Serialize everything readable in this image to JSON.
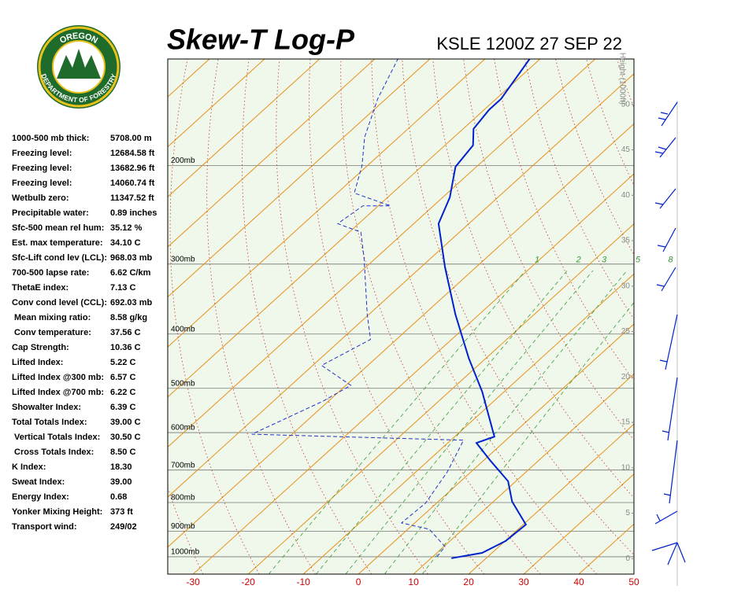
{
  "logo": {
    "top": "OREGON",
    "bottom": "DEPARTMENT OF FORESTRY"
  },
  "indices": [
    [
      "1000-500 mb thick:",
      "5708.00 m"
    ],
    [
      "Freezing level:",
      "12684.58 ft"
    ],
    [
      "Freezing level:",
      "13682.96 ft"
    ],
    [
      "Freezing level:",
      "14060.74 ft"
    ],
    [
      "Wetbulb zero:",
      "11347.52 ft"
    ],
    [
      "Precipitable water:",
      "0.89 inches"
    ],
    [
      "Sfc-500 mean rel hum:",
      "35.12 %"
    ],
    [
      "Est. max temperature:",
      "34.10 C"
    ],
    [
      "Sfc-Lift cond lev (LCL):",
      "968.03 mb"
    ],
    [
      "700-500 lapse rate:",
      "6.62 C/km"
    ],
    [
      "ThetaE index:",
      "7.13 C"
    ],
    [
      "Conv cond level (CCL):",
      "692.03 mb"
    ],
    [
      " Mean mixing ratio:",
      "8.58 g/kg"
    ],
    [
      " Conv temperature:",
      "37.56 C"
    ],
    [
      "Cap Strength:",
      "10.36 C"
    ],
    [
      "Lifted Index:",
      "5.22 C"
    ],
    [
      "Lifted Index @300 mb:",
      "6.57 C"
    ],
    [
      "Lifted Index @700 mb:",
      "6.22 C"
    ],
    [
      "Showalter Index:",
      "6.39 C"
    ],
    [
      "Total Totals Index:",
      "39.00 C"
    ],
    [
      " Vertical Totals Index:",
      "30.50 C"
    ],
    [
      " Cross Totals Index:",
      "8.50 C"
    ],
    [
      "K Index:",
      "18.30"
    ],
    [
      "Sweat Index:",
      "39.00"
    ],
    [
      "Energy Index:",
      "0.68"
    ],
    [
      "Yonker Mixing Height:",
      "373 ft"
    ],
    [
      "Transport wind:",
      "249/02"
    ]
  ],
  "chart_data": {
    "type": "skewt",
    "title": "Skew-T Log-P",
    "subtitle": "KSLE 1200Z 27 SEP 22",
    "xlim": [
      -34.6,
      50
    ],
    "xticks": [
      -30,
      -20,
      -10,
      0,
      10,
      20,
      30,
      40,
      50
    ],
    "ylim": [
      1074,
      129
    ],
    "log_y": true,
    "yticks": [
      {
        "value": 1000,
        "label": "1000mb"
      },
      {
        "value": 900,
        "label": "900mb"
      },
      {
        "value": 800,
        "label": "800mb"
      },
      {
        "value": 700,
        "label": "700mb"
      },
      {
        "value": 600,
        "label": "600mb"
      },
      {
        "value": 500,
        "label": "500mb"
      },
      {
        "value": 400,
        "label": "400mb"
      },
      {
        "value": 300,
        "label": "300mb"
      },
      {
        "value": 200,
        "label": "200mb"
      }
    ],
    "y2_label": "Height (1000ft)",
    "y2lim": [
      -1.7,
      55
    ],
    "y2ticks": [
      0,
      5,
      10,
      15,
      20,
      25,
      30,
      35,
      40,
      45,
      50
    ],
    "mixing_ratio_labels": [
      "1",
      "2",
      "3",
      "5",
      "8"
    ],
    "series": [
      {
        "name": "Temperature",
        "color": "#0022cc",
        "dashed": false,
        "pressure": [
          1006,
          984,
          937,
          876,
          797,
          733,
          672,
          626,
          610,
          507,
          442,
          369,
          304,
          254,
          228,
          201,
          184,
          172,
          159,
          152,
          129
        ],
        "values": [
          13.7,
          18.2,
          20.1,
          20.5,
          13.4,
          8.6,
          1.1,
          -4.8,
          -2.8,
          -14.0,
          -23.1,
          -34.3,
          -45.6,
          -55.5,
          -58.7,
          -63.8,
          -64.9,
          -68.1,
          -69.1,
          -69.1,
          -71.9
        ]
      },
      {
        "name": "Dewpoint",
        "color": "#2233cc",
        "dashed": true,
        "pressure": [
          1000,
          959,
          893,
          870,
          802,
          705,
          619,
          604,
          527,
          494,
          455,
          409,
          369,
          294,
          263,
          254,
          236,
          236,
          224,
          200,
          178,
          152,
          129
        ],
        "values": [
          10.8,
          10.2,
          3.9,
          -2.4,
          -2.0,
          -4.3,
          -7.7,
          -47.3,
          -41.0,
          -39.1,
          -48.4,
          -44.7,
          -50.3,
          -61.9,
          -67.9,
          -73.8,
          -72.8,
          -67.8,
          -76.9,
          -81.0,
          -86.2,
          -91.5,
          -95.8
        ]
      }
    ]
  }
}
